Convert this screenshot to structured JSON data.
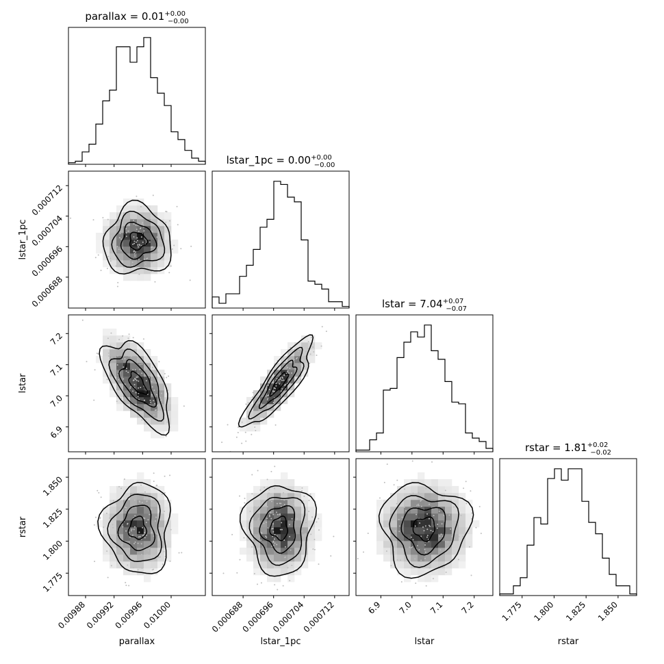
{
  "chart_data": {
    "type": "corner",
    "parameters": [
      "parallax",
      "lstar_1pc",
      "lstar",
      "rstar"
    ],
    "axis_labels": [
      "parallax",
      "lstar_1pc",
      "lstar",
      "rstar"
    ],
    "titles": [
      {
        "name": "parallax",
        "value": "0.01",
        "plus": "+0.00",
        "minus": "−0.00"
      },
      {
        "name": "lstar_1pc",
        "value": "0.00",
        "plus": "+0.00",
        "minus": "−0.00"
      },
      {
        "name": "lstar",
        "value": "7.04",
        "plus": "+0.07",
        "minus": "−0.07"
      },
      {
        "name": "rstar",
        "value": "1.81",
        "plus": "+0.02",
        "minus": "−0.02"
      }
    ],
    "ranges": [
      [
        0.009856,
        0.010048
      ],
      [
        0.0006799,
        0.0007158
      ],
      [
        6.82,
        7.26
      ],
      [
        1.7575,
        1.8645
      ]
    ],
    "ticks": [
      {
        "values": [
          0.00988,
          0.00992,
          0.00996,
          0.01
        ],
        "labels": [
          "0.00988",
          "0.00992",
          "0.00996",
          "0.01000"
        ]
      },
      {
        "values": [
          0.000688,
          0.000696,
          0.000704,
          0.000712
        ],
        "labels": [
          "0.000688",
          "0.000696",
          "0.000704",
          "0.000712"
        ]
      },
      {
        "values": [
          6.9,
          7.0,
          7.1,
          7.2
        ],
        "labels": [
          "6.9",
          "7.0",
          "7.1",
          "7.2"
        ]
      },
      {
        "values": [
          1.775,
          1.8,
          1.825,
          1.85
        ],
        "labels": [
          "1.775",
          "1.800",
          "1.825",
          "1.850"
        ]
      }
    ],
    "histograms": [
      [
        1,
        2,
        8,
        13,
        26,
        41,
        48,
        76,
        76,
        66,
        76,
        82,
        56,
        46,
        38,
        21,
        16,
        9,
        4,
        2
      ],
      [
        7,
        3,
        9,
        9,
        20,
        27,
        37,
        51,
        56,
        80,
        78,
        70,
        67,
        43,
        17,
        15,
        12,
        4,
        4,
        1
      ],
      [
        1,
        1,
        7,
        11,
        36,
        37,
        55,
        64,
        70,
        67,
        74,
        59,
        54,
        41,
        29,
        28,
        11,
        8,
        6,
        2
      ],
      [
        1,
        1,
        6,
        11,
        31,
        48,
        44,
        72,
        78,
        71,
        78,
        78,
        58,
        45,
        38,
        23,
        13,
        6,
        6,
        1
      ]
    ],
    "means": [
      0.009953,
      0.0006975,
      7.04,
      1.81
    ],
    "sigmas": [
      2.35e-05,
      4.5e-06,
      0.07,
      0.0175
    ],
    "correlations": [
      [
        1.0,
        0.0,
        -0.6,
        0.0
      ],
      [
        0.0,
        1.0,
        0.85,
        0.0
      ],
      [
        -0.6,
        0.85,
        1.0,
        0.0
      ],
      [
        0.0,
        0.0,
        0.0,
        1.0
      ]
    ],
    "contour_levels_sigma": [
      0.5,
      1.0,
      1.5,
      2.0
    ],
    "grid": false,
    "legend": "none",
    "colors": {
      "hist_line": "#000000",
      "density": "#000000",
      "contour": "#000000",
      "background": "#ffffff"
    }
  }
}
